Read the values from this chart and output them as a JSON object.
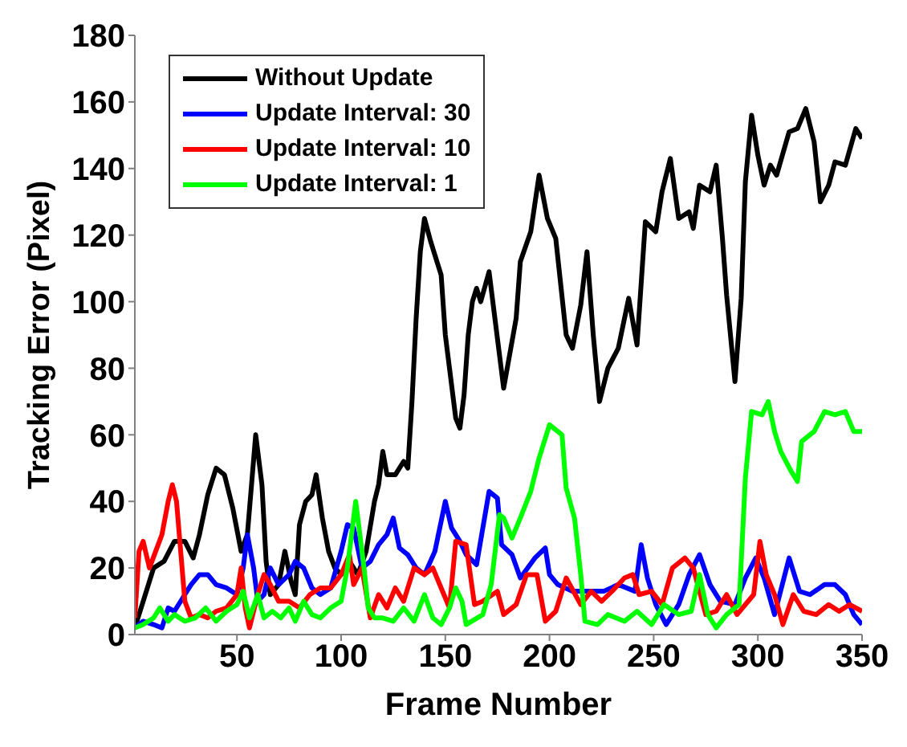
{
  "chart_data": {
    "type": "line",
    "xlabel": "Frame Number",
    "ylabel": "Tracking Error (Pixel)",
    "xlim": [
      1,
      350
    ],
    "ylim": [
      0,
      180
    ],
    "xticks": [
      50,
      100,
      150,
      200,
      250,
      300,
      350
    ],
    "yticks": [
      0,
      20,
      40,
      60,
      80,
      100,
      120,
      140,
      160,
      180
    ],
    "legend": "top left",
    "line_style": "solid",
    "marker": "none",
    "series": [
      {
        "name": "Without Update",
        "color": "#000000",
        "x": [
          1,
          5,
          10,
          15,
          20,
          25,
          29,
          32,
          36,
          40,
          44,
          48,
          52,
          55,
          57,
          59,
          62,
          64,
          66,
          70,
          73,
          76,
          78,
          80,
          83,
          86,
          88,
          91,
          94,
          97,
          100,
          104,
          108,
          112,
          116,
          118,
          120,
          122,
          126,
          130,
          132,
          134,
          136,
          138,
          140,
          143,
          146,
          148,
          150,
          152,
          155,
          157,
          159,
          161,
          163,
          165,
          167,
          171,
          178,
          184,
          186,
          191,
          195,
          199,
          203,
          208,
          211,
          215,
          218,
          221,
          224,
          228,
          233,
          238,
          242,
          246,
          251,
          254,
          258,
          262,
          267,
          269,
          272,
          277,
          280,
          283,
          285,
          289,
          292,
          294,
          297,
          300,
          303,
          306,
          309,
          315,
          319,
          323,
          327,
          330,
          334,
          337,
          342,
          347,
          350
        ],
        "values": [
          2,
          10,
          20,
          22,
          28,
          28,
          23,
          30,
          42,
          50,
          48,
          38,
          25,
          30,
          45,
          60,
          45,
          22,
          12,
          15,
          25,
          16,
          12,
          33,
          40,
          42,
          48,
          35,
          25,
          20,
          18,
          22,
          18,
          25,
          40,
          45,
          55,
          48,
          48,
          52,
          50,
          70,
          95,
          115,
          125,
          118,
          112,
          108,
          90,
          80,
          65,
          62,
          72,
          90,
          100,
          104,
          100,
          109,
          74,
          95,
          112,
          121,
          138,
          125,
          119,
          90,
          86,
          99,
          115,
          90,
          70,
          80,
          86,
          101,
          87,
          124,
          121,
          133,
          143,
          125,
          127,
          122,
          135,
          133,
          141,
          119,
          102,
          76,
          101,
          136,
          156,
          144,
          135,
          141,
          138,
          151,
          152,
          158,
          148,
          130,
          135,
          142,
          141,
          152,
          149
        ]
      },
      {
        "name": "Update Interval: 30",
        "color": "#0000ff",
        "x": [
          1,
          5,
          10,
          14,
          17,
          20,
          25,
          28,
          32,
          36,
          40,
          45,
          50,
          53,
          55,
          58,
          60,
          63,
          66,
          70,
          75,
          78,
          82,
          86,
          90,
          95,
          100,
          103,
          106,
          110,
          114,
          118,
          122,
          125,
          128,
          132,
          136,
          140,
          145,
          150,
          153,
          157,
          160,
          165,
          171,
          175,
          177,
          182,
          186,
          193,
          198,
          200,
          204,
          211,
          219,
          226,
          233,
          241,
          244,
          247,
          251,
          256,
          262,
          267,
          272,
          277,
          282,
          289,
          294,
          299,
          303,
          308,
          315,
          320,
          325,
          332,
          337,
          342,
          346,
          350
        ],
        "values": [
          2,
          4,
          3,
          2,
          8,
          7,
          12,
          15,
          18,
          18,
          15,
          14,
          12,
          20,
          30,
          20,
          10,
          12,
          20,
          15,
          18,
          22,
          20,
          14,
          12,
          14,
          25,
          33,
          32,
          20,
          22,
          27,
          30,
          35,
          26,
          24,
          20,
          18,
          25,
          40,
          32,
          28,
          24,
          21,
          43,
          41,
          27,
          24,
          17,
          23,
          26,
          18,
          15,
          13,
          13,
          13,
          15,
          13,
          27,
          17,
          9,
          3,
          9,
          18,
          24,
          15,
          10,
          9,
          17,
          23,
          17,
          6,
          23,
          13,
          12,
          15,
          15,
          12,
          6,
          3
        ]
      },
      {
        "name": "Update Interval: 10",
        "color": "#ff0000",
        "x": [
          1,
          3,
          5,
          8,
          11,
          14,
          17,
          19,
          21,
          23,
          25,
          28,
          32,
          36,
          40,
          45,
          50,
          52,
          54,
          56,
          60,
          63,
          66,
          70,
          75,
          80,
          85,
          90,
          95,
          100,
          104,
          106,
          110,
          114,
          118,
          122,
          126,
          130,
          135,
          140,
          144,
          148,
          152,
          155,
          160,
          164,
          168,
          175,
          178,
          184,
          189,
          194,
          198,
          203,
          208,
          215,
          220,
          225,
          230,
          236,
          240,
          243,
          249,
          254,
          259,
          265,
          269,
          275,
          280,
          285,
          290,
          298,
          301,
          304,
          308,
          312,
          317,
          322,
          328,
          334,
          339,
          344,
          350
        ],
        "values": [
          5,
          25,
          28,
          20,
          25,
          30,
          40,
          45,
          40,
          25,
          10,
          5,
          6,
          5,
          7,
          8,
          12,
          20,
          8,
          2,
          12,
          18,
          15,
          10,
          10,
          8,
          12,
          14,
          14,
          18,
          24,
          15,
          20,
          5,
          12,
          8,
          14,
          10,
          20,
          18,
          20,
          14,
          8,
          28,
          27,
          9,
          10,
          13,
          6,
          9,
          18,
          18,
          4,
          7,
          17,
          9,
          13,
          10,
          13,
          17,
          18,
          12,
          13,
          9,
          20,
          23,
          20,
          6,
          7,
          12,
          6,
          12,
          28,
          18,
          12,
          3,
          12,
          7,
          6,
          9,
          7,
          9,
          7
        ]
      },
      {
        "name": "Update Interval: 1",
        "color": "#00ff00",
        "x": [
          1,
          5,
          10,
          13,
          17,
          20,
          25,
          30,
          35,
          40,
          45,
          50,
          53,
          56,
          60,
          63,
          67,
          71,
          75,
          78,
          82,
          86,
          90,
          95,
          100,
          103,
          106,
          107,
          109,
          111,
          113,
          116,
          120,
          125,
          130,
          135,
          140,
          144,
          148,
          152,
          155,
          158,
          160,
          168,
          172,
          176,
          178,
          182,
          186,
          191,
          195,
          200,
          206,
          208,
          212,
          215,
          217,
          223,
          228,
          236,
          242,
          249,
          255,
          262,
          268,
          272,
          276,
          280,
          285,
          291,
          294,
          297,
          302,
          305,
          308,
          311,
          316,
          319,
          321,
          327,
          332,
          337,
          342,
          346,
          350
        ],
        "values": [
          2,
          3,
          5,
          8,
          4,
          6,
          4,
          5,
          8,
          4,
          7,
          9,
          13,
          5,
          12,
          5,
          7,
          5,
          8,
          4,
          10,
          6,
          5,
          8,
          10,
          20,
          35,
          40,
          30,
          20,
          8,
          5,
          5,
          4,
          8,
          4,
          12,
          5,
          3,
          8,
          14,
          10,
          3,
          6,
          15,
          36,
          35,
          29,
          35,
          43,
          53,
          63,
          60,
          44,
          35,
          18,
          4,
          3,
          6,
          4,
          7,
          3,
          9,
          6,
          7,
          18,
          6,
          2,
          6,
          9,
          47,
          67,
          66,
          70,
          61,
          55,
          49,
          46,
          58,
          61,
          67,
          66,
          67,
          61,
          61
        ]
      }
    ]
  }
}
